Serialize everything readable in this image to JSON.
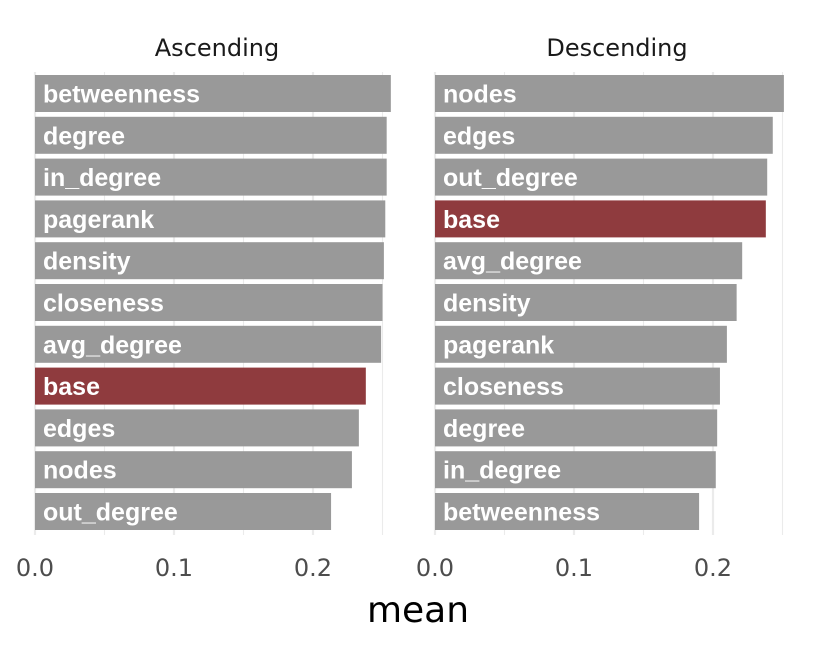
{
  "chart_data": {
    "type": "bar",
    "orientation": "horizontal",
    "xlabel": "mean",
    "xlim": [
      0,
      0.25
    ],
    "xticks": [
      "0.0",
      "0.1",
      "0.2"
    ],
    "grid": true,
    "highlight_category": "base",
    "colors": {
      "default": "#999999",
      "highlight": "#8f3b3e"
    },
    "panels": [
      {
        "title": "Ascending",
        "categories": [
          "betweenness",
          "degree",
          "in_degree",
          "pagerank",
          "density",
          "closeness",
          "avg_degree",
          "base",
          "edges",
          "nodes",
          "out_degree"
        ],
        "values": [
          0.256,
          0.253,
          0.253,
          0.252,
          0.251,
          0.25,
          0.249,
          0.238,
          0.233,
          0.228,
          0.213
        ]
      },
      {
        "title": "Descending",
        "categories": [
          "nodes",
          "edges",
          "out_degree",
          "base",
          "avg_degree",
          "density",
          "pagerank",
          "closeness",
          "degree",
          "in_degree",
          "betweenness"
        ],
        "values": [
          0.251,
          0.243,
          0.239,
          0.238,
          0.221,
          0.217,
          0.21,
          0.205,
          0.203,
          0.202,
          0.19
        ]
      }
    ]
  }
}
